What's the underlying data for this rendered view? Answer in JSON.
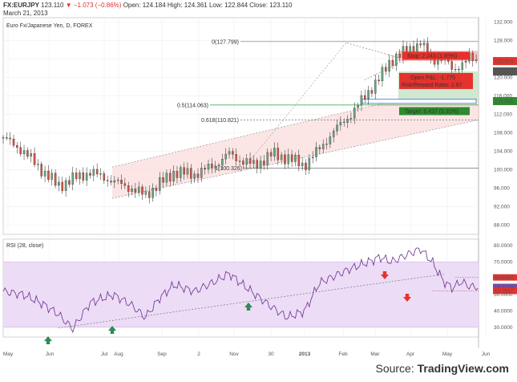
{
  "header": {
    "symbol": "FX:EURJPY",
    "last": "123.110",
    "change": "−1.073 (−0.86%)",
    "open_label": "Open:",
    "open": "124.184",
    "high_label": "High:",
    "high": "124.361",
    "low_label": "Low:",
    "low": "122.844",
    "close_label": "Close:",
    "close": "123.110",
    "date": "March 21, 2013"
  },
  "chart_data": [
    {
      "type": "candlestick",
      "title": "Euro Fx/Japanese Yen, D, FOREX",
      "ylim": [
        86,
        133
      ],
      "y_ticks": [
        "132.000",
        "128.000",
        "124.000",
        "120.000",
        "116.000",
        "112.000",
        "108.000",
        "104.000",
        "100.000",
        "96.000",
        "92.000",
        "88.000"
      ],
      "x_ticks": [
        "May",
        "Jun",
        "Jul",
        "Aug",
        "Sep",
        "2",
        "Nov",
        "30",
        "2013",
        "Feb",
        "Mar",
        "Apr",
        "May",
        "Jun"
      ],
      "fib_levels": [
        {
          "label": "0(127.799)",
          "value": 127.799
        },
        {
          "label": "0.5(114.063)",
          "value": 114.063
        },
        {
          "label": "0.618(110.821)",
          "value": 110.821
        },
        {
          "label": "1(100.326)",
          "value": 100.326
        }
      ],
      "price_badges": [
        {
          "text": "123.578",
          "color": "#e5322d"
        },
        {
          "text": "121.335",
          "color": "#555555"
        },
        {
          "text": "114.898",
          "color": "#2e8b2e"
        }
      ],
      "trade": {
        "stop_text": "Stop: 2.243 (1.85%)",
        "pnl_text": "Open P&L: -1.775",
        "rr_text": "Risk/Reward Ratio: 2.87",
        "target_text": "Target: 6.437 (5.31%)"
      },
      "path": [
        [
          0,
          107
        ],
        [
          7,
          104
        ],
        [
          14,
          99.5
        ],
        [
          19,
          96.5
        ],
        [
          24,
          98
        ],
        [
          30,
          99.5
        ],
        [
          38,
          97.5
        ],
        [
          44,
          96
        ],
        [
          49,
          94.5
        ],
        [
          54,
          97
        ],
        [
          59,
          99.5
        ],
        [
          66,
          99
        ],
        [
          73,
          101
        ],
        [
          78,
          103.5
        ],
        [
          82,
          102
        ],
        [
          87,
          101
        ],
        [
          93,
          103.5
        ],
        [
          98,
          102.5
        ],
        [
          104,
          101
        ],
        [
          109,
          104.5
        ],
        [
          115,
          109
        ],
        [
          120,
          112
        ],
        [
          126,
          117
        ],
        [
          130,
          120
        ],
        [
          134,
          124
        ],
        [
          140,
          126
        ],
        [
          144,
          127.6
        ],
        [
          148,
          123.5
        ],
        [
          152,
          124.5
        ],
        [
          155,
          121.5
        ],
        [
          158,
          123
        ],
        [
          161,
          124.3
        ],
        [
          164,
          123.1
        ]
      ]
    },
    {
      "type": "line",
      "title": "RSI (28, close)",
      "ylim": [
        24,
        84
      ],
      "y_ticks": [
        "80.0000",
        "70.0000",
        "60.0000",
        "50.0000",
        "40.0000",
        "30.0000"
      ],
      "band": [
        30,
        70
      ],
      "value_badges": [
        {
          "text": "60.5460",
          "color": "#e5322d"
        },
        {
          "text": "54.7149",
          "color": "#7b4aa8"
        },
        {
          "text": "52.2957",
          "color": "#e5322d"
        }
      ],
      "x": [
        0,
        7,
        14,
        19,
        24,
        30,
        38,
        44,
        49,
        54,
        59,
        66,
        73,
        78,
        82,
        87,
        93,
        98,
        104,
        109,
        115,
        120,
        126,
        130,
        134,
        140,
        144,
        148,
        152,
        155,
        158,
        161,
        164
      ],
      "values": [
        52,
        50,
        44,
        38,
        29,
        45,
        50,
        44,
        36,
        48,
        56,
        52,
        58,
        63,
        57,
        50,
        42,
        36,
        40,
        57,
        62,
        66,
        70,
        73,
        70,
        75,
        78,
        70,
        58,
        54,
        58,
        55,
        54.7
      ]
    }
  ],
  "source": {
    "prefix": "Source: ",
    "brand": "TradingView.com"
  }
}
